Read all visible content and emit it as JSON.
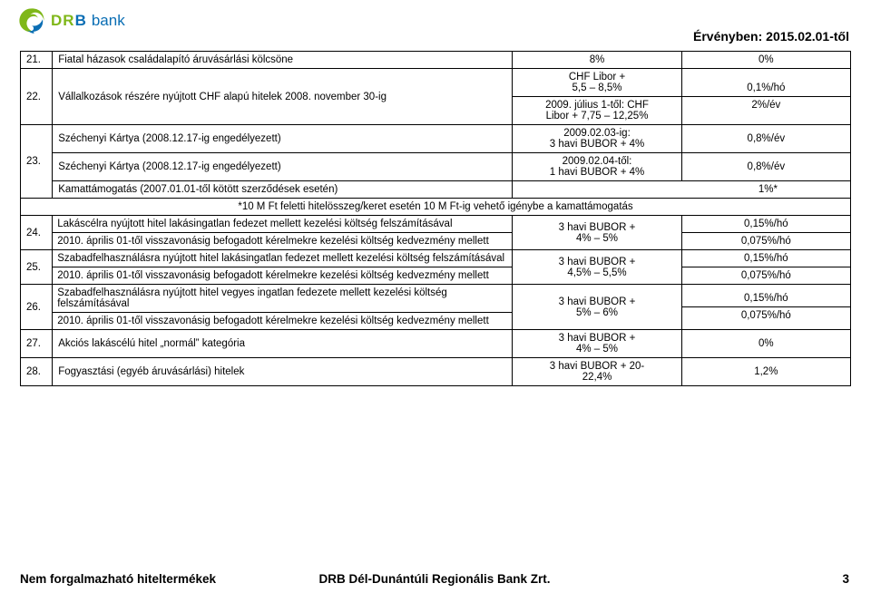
{
  "logo": {
    "letters": [
      "D",
      "R",
      "B"
    ],
    "suffix": "bank"
  },
  "validity": "Érvényben: 2015.02.01-től",
  "rows": [
    {
      "n": "21.",
      "desc": "Fiatal házasok családalapító áruvásárlási kölcsöne",
      "rate": "8%",
      "fee": "0%"
    },
    {
      "n": "22.",
      "desc": "Vállalkozások részére nyújtott CHF alapú hitelek 2008. november 30-ig",
      "rate_split": [
        "CHF Libor +\n5,5 – 8,5%",
        "2009. július 1-től: CHF\nLibor + 7,75 – 12,25%"
      ],
      "fee_split": [
        "0,1%/hó",
        "2%/év"
      ]
    },
    {
      "n": "23.",
      "sub": [
        {
          "desc": "Széchenyi Kártya (2008.12.17-ig engedélyezett)",
          "rate": "2009.02.03-ig:\n3 havi BUBOR + 4%",
          "fee": "0,8%/év"
        },
        {
          "desc": "Széchenyi Kártya (2008.12.17-ig engedélyezett)",
          "rate": "2009.02.04-től:\n1 havi BUBOR + 4%",
          "fee": "0,8%/év"
        },
        {
          "desc": "Kamattámogatás (2007.01.01-től kötött szerződések esetén)",
          "rate_fee_merged": "1%*"
        }
      ]
    },
    {
      "footnote": "*10 M Ft feletti hitelösszeg/keret esetén 10 M Ft-ig vehető igénybe a kamattámogatás"
    },
    {
      "n": "24.",
      "desc_split": [
        "Lakáscélra nyújtott hitel lakásingatlan fedezet mellett kezelési költség felszámításával",
        "2010. április 01-től visszavonásig befogadott kérelmekre kezelési költség kedvezmény mellett"
      ],
      "rate": "3 havi BUBOR +\n4% – 5%",
      "fee_split": [
        "0,15%/hó",
        "0,075%/hó"
      ]
    },
    {
      "n": "25.",
      "desc_split": [
        "Szabadfelhasználásra nyújtott hitel lakásingatlan fedezet mellett kezelési költség felszámításával",
        "2010. április 01-től visszavonásig befogadott kérelmekre kezelési költség kedvezmény mellett"
      ],
      "rate": "3 havi BUBOR +\n4,5% – 5,5%",
      "fee_split": [
        "0,15%/hó",
        "0,075%/hó"
      ]
    },
    {
      "n": "26.",
      "desc_split": [
        "Szabadfelhasználásra nyújtott hitel vegyes ingatlan fedezete mellett kezelési költség felszámításával",
        "2010. április 01-től visszavonásig befogadott kérelmekre kezelési költség kedvezmény mellett"
      ],
      "rate": "3 havi BUBOR +\n5% – 6%",
      "fee_split": [
        "0,15%/hó",
        "0,075%/hó"
      ]
    },
    {
      "n": "27.",
      "desc": "Akciós lakáscélú hitel „normál” kategória",
      "rate": "3 havi BUBOR +\n4% – 5%",
      "fee": "0%"
    },
    {
      "n": "28.",
      "desc": "Fogyasztási (egyéb áruvásárlási) hitelek",
      "rate": "3 havi BUBOR + 20-\n22,4%",
      "fee": "1,2%"
    }
  ],
  "footer": {
    "left": "Nem forgalmazható hiteltermékek",
    "center": "DRB Dél-Dunántúli Regionális Bank Zrt.",
    "page": "3"
  },
  "colors": {
    "green": "#7fb719",
    "blue": "#0a6eb4",
    "border": "#000000",
    "bg": "#ffffff",
    "text": "#000000"
  }
}
